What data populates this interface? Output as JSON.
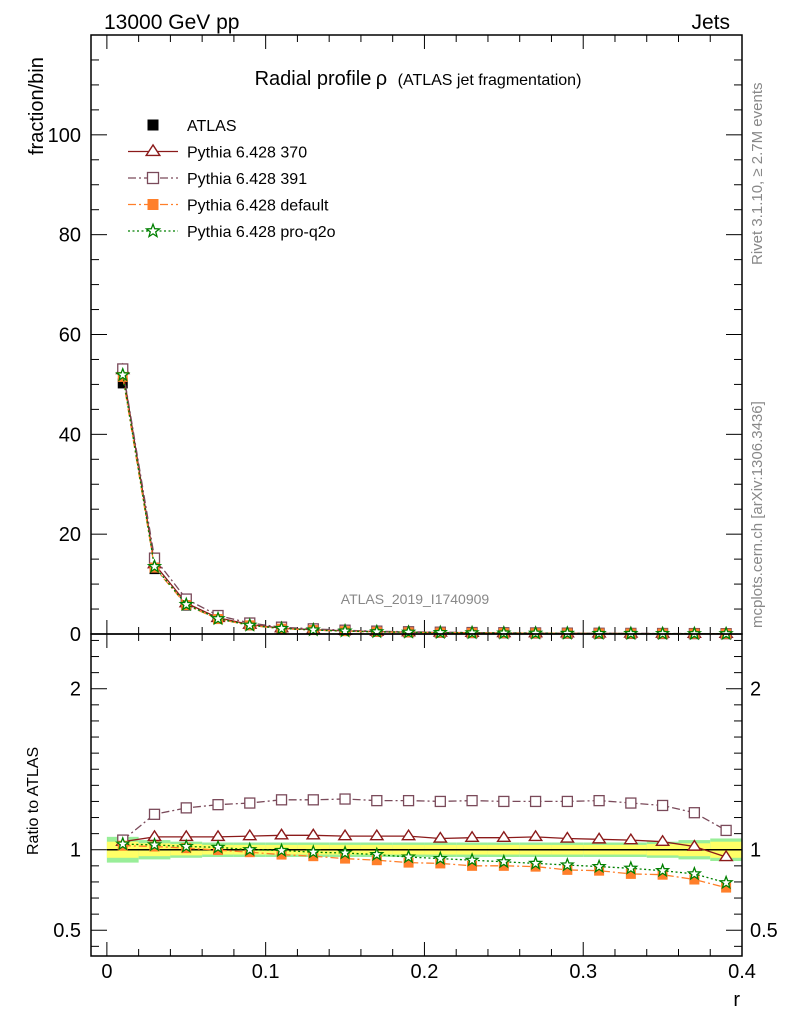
{
  "header": {
    "energy_label": "13000 GeV pp",
    "process_label": "Jets",
    "side_label_top": "Rivet 3.1.10, ≥ 2.7M events",
    "side_label_bottom": "mcplots.cern.ch [arXiv:1306.3436]",
    "watermark": "ATLAS_2019_I1740909"
  },
  "chart_data": [
    {
      "type": "line",
      "panel": "main",
      "title": "Radial profile",
      "title_symbol": "ρ",
      "subtitle": "(ATLAS jet fragmentation)",
      "xlabel": "r",
      "ylabel": "fraction/bin",
      "xlim": [
        -0.01,
        0.4
      ],
      "ylim": [
        0,
        120
      ],
      "yticks": [
        0,
        20,
        40,
        60,
        80,
        100
      ],
      "ytick_labels": [
        "0",
        "20",
        "40",
        "60",
        "80",
        "100"
      ],
      "legend_position": "top-left",
      "x": [
        0.01,
        0.03,
        0.05,
        0.07,
        0.09,
        0.11,
        0.13,
        0.15,
        0.17,
        0.19,
        0.21,
        0.23,
        0.25,
        0.27,
        0.29,
        0.31,
        0.33,
        0.35,
        0.37,
        0.39
      ],
      "series": [
        {
          "name": "ATLAS",
          "color": "#000000",
          "marker": "square-filled",
          "line": "none",
          "values": [
            50.2,
            13.0,
            5.7,
            3.0,
            1.75,
            1.1,
            0.82,
            0.6,
            0.45,
            0.36,
            0.29,
            0.24,
            0.2,
            0.17,
            0.14,
            0.12,
            0.1,
            0.085,
            0.07,
            0.06
          ]
        },
        {
          "name": "Pythia 6.428 370",
          "color": "#8b1a1a",
          "marker": "triangle-open",
          "line": "solid",
          "values": [
            52.9,
            14.0,
            6.2,
            3.25,
            1.9,
            1.19,
            0.89,
            0.65,
            0.49,
            0.39,
            0.31,
            0.26,
            0.21,
            0.18,
            0.15,
            0.13,
            0.11,
            0.09,
            0.07,
            0.06
          ]
        },
        {
          "name": "Pythia 6.428 391",
          "color": "#7a4a5a",
          "marker": "square-open",
          "line": "dashdot",
          "values": [
            53.1,
            15.2,
            7.0,
            3.7,
            2.2,
            1.37,
            1.03,
            0.76,
            0.57,
            0.45,
            0.36,
            0.29,
            0.25,
            0.21,
            0.17,
            0.15,
            0.12,
            0.1,
            0.08,
            0.066
          ]
        },
        {
          "name": "Pythia 6.428 default",
          "color": "#ff7f2a",
          "marker": "square-filled",
          "line": "dashdot",
          "values": [
            51.5,
            13.3,
            5.8,
            3.0,
            1.73,
            1.07,
            0.79,
            0.57,
            0.43,
            0.33,
            0.27,
            0.22,
            0.18,
            0.155,
            0.125,
            0.106,
            0.086,
            0.073,
            0.058,
            0.046
          ]
        },
        {
          "name": "Pythia 6.428 pro-q2o",
          "color": "#008000",
          "marker": "star-open",
          "line": "dotted",
          "values": [
            51.9,
            13.5,
            5.9,
            3.05,
            1.75,
            1.1,
            0.81,
            0.59,
            0.44,
            0.35,
            0.28,
            0.23,
            0.19,
            0.16,
            0.13,
            0.11,
            0.09,
            0.077,
            0.061,
            0.048
          ]
        }
      ]
    },
    {
      "type": "line",
      "panel": "ratio",
      "ylabel": "Ratio to ATLAS",
      "xlabel": "r",
      "xlim": [
        -0.01,
        0.4
      ],
      "ylim": [
        0.34,
        2.34
      ],
      "yticks": [
        0.5,
        1,
        2
      ],
      "ytick_labels": [
        "0.5",
        "1",
        "2"
      ],
      "xticks": [
        0,
        0.1,
        0.2,
        0.3,
        0.4
      ],
      "xtick_labels": [
        "0",
        "0.1",
        "0.2",
        "0.3",
        "0.4"
      ],
      "band_colors": {
        "inner": "#ffff66",
        "outer": "#99ee99"
      },
      "band_inner": [
        0.05,
        0.04,
        0.035,
        0.03,
        0.03,
        0.03,
        0.03,
        0.03,
        0.03,
        0.03,
        0.03,
        0.03,
        0.03,
        0.03,
        0.03,
        0.03,
        0.03,
        0.035,
        0.04,
        0.05
      ],
      "band_outer": [
        0.08,
        0.06,
        0.05,
        0.045,
        0.045,
        0.045,
        0.045,
        0.045,
        0.045,
        0.045,
        0.045,
        0.045,
        0.045,
        0.045,
        0.045,
        0.045,
        0.045,
        0.05,
        0.06,
        0.07
      ],
      "x": [
        0.01,
        0.03,
        0.05,
        0.07,
        0.09,
        0.11,
        0.13,
        0.15,
        0.17,
        0.19,
        0.21,
        0.23,
        0.25,
        0.27,
        0.29,
        0.31,
        0.33,
        0.35,
        0.37,
        0.39
      ],
      "series": [
        {
          "name": "Pythia 6.428 370",
          "color": "#8b1a1a",
          "marker": "triangle-open",
          "line": "solid",
          "values": [
            1.05,
            1.08,
            1.08,
            1.08,
            1.085,
            1.09,
            1.09,
            1.085,
            1.085,
            1.085,
            1.07,
            1.075,
            1.075,
            1.08,
            1.07,
            1.065,
            1.06,
            1.05,
            1.02,
            0.955
          ]
        },
        {
          "name": "Pythia 6.428 391",
          "color": "#7a4a5a",
          "marker": "square-open",
          "line": "dashdot",
          "values": [
            1.06,
            1.22,
            1.26,
            1.28,
            1.29,
            1.31,
            1.31,
            1.315,
            1.305,
            1.305,
            1.3,
            1.305,
            1.3,
            1.3,
            1.3,
            1.305,
            1.29,
            1.275,
            1.23,
            1.12
          ]
        },
        {
          "name": "Pythia 6.428 default",
          "color": "#ff7f2a",
          "marker": "square-filled",
          "line": "dashdot",
          "values": [
            1.025,
            1.02,
            1.01,
            0.998,
            0.985,
            0.97,
            0.96,
            0.945,
            0.935,
            0.92,
            0.915,
            0.9,
            0.9,
            0.895,
            0.875,
            0.87,
            0.85,
            0.845,
            0.815,
            0.765
          ]
        },
        {
          "name": "Pythia 6.428 pro-q2o",
          "color": "#008000",
          "marker": "star-open",
          "line": "dotted",
          "values": [
            1.035,
            1.03,
            1.02,
            1.015,
            1.0,
            0.995,
            0.985,
            0.98,
            0.97,
            0.955,
            0.945,
            0.935,
            0.925,
            0.915,
            0.905,
            0.895,
            0.885,
            0.87,
            0.85,
            0.795
          ]
        }
      ]
    }
  ]
}
